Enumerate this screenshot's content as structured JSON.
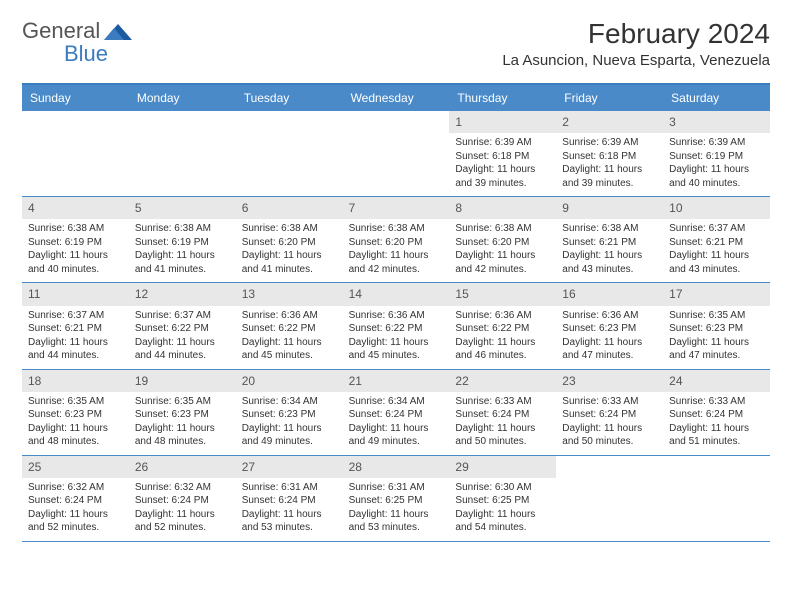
{
  "logo": {
    "part1": "General",
    "part2": "Blue"
  },
  "title": "February 2024",
  "location": "La Asuncion, Nueva Esparta, Venezuela",
  "colors": {
    "header_bg": "#4a8ac9",
    "border": "#4a8ac9",
    "daynum_bg": "#e8e8e8",
    "text": "#333333",
    "logo_blue": "#3b7bbf"
  },
  "weekdays": [
    "Sunday",
    "Monday",
    "Tuesday",
    "Wednesday",
    "Thursday",
    "Friday",
    "Saturday"
  ],
  "weeks": [
    [
      {
        "n": "",
        "sunrise": "",
        "sunset": "",
        "daylight": ""
      },
      {
        "n": "",
        "sunrise": "",
        "sunset": "",
        "daylight": ""
      },
      {
        "n": "",
        "sunrise": "",
        "sunset": "",
        "daylight": ""
      },
      {
        "n": "",
        "sunrise": "",
        "sunset": "",
        "daylight": ""
      },
      {
        "n": "1",
        "sunrise": "Sunrise: 6:39 AM",
        "sunset": "Sunset: 6:18 PM",
        "daylight": "Daylight: 11 hours and 39 minutes."
      },
      {
        "n": "2",
        "sunrise": "Sunrise: 6:39 AM",
        "sunset": "Sunset: 6:18 PM",
        "daylight": "Daylight: 11 hours and 39 minutes."
      },
      {
        "n": "3",
        "sunrise": "Sunrise: 6:39 AM",
        "sunset": "Sunset: 6:19 PM",
        "daylight": "Daylight: 11 hours and 40 minutes."
      }
    ],
    [
      {
        "n": "4",
        "sunrise": "Sunrise: 6:38 AM",
        "sunset": "Sunset: 6:19 PM",
        "daylight": "Daylight: 11 hours and 40 minutes."
      },
      {
        "n": "5",
        "sunrise": "Sunrise: 6:38 AM",
        "sunset": "Sunset: 6:19 PM",
        "daylight": "Daylight: 11 hours and 41 minutes."
      },
      {
        "n": "6",
        "sunrise": "Sunrise: 6:38 AM",
        "sunset": "Sunset: 6:20 PM",
        "daylight": "Daylight: 11 hours and 41 minutes."
      },
      {
        "n": "7",
        "sunrise": "Sunrise: 6:38 AM",
        "sunset": "Sunset: 6:20 PM",
        "daylight": "Daylight: 11 hours and 42 minutes."
      },
      {
        "n": "8",
        "sunrise": "Sunrise: 6:38 AM",
        "sunset": "Sunset: 6:20 PM",
        "daylight": "Daylight: 11 hours and 42 minutes."
      },
      {
        "n": "9",
        "sunrise": "Sunrise: 6:38 AM",
        "sunset": "Sunset: 6:21 PM",
        "daylight": "Daylight: 11 hours and 43 minutes."
      },
      {
        "n": "10",
        "sunrise": "Sunrise: 6:37 AM",
        "sunset": "Sunset: 6:21 PM",
        "daylight": "Daylight: 11 hours and 43 minutes."
      }
    ],
    [
      {
        "n": "11",
        "sunrise": "Sunrise: 6:37 AM",
        "sunset": "Sunset: 6:21 PM",
        "daylight": "Daylight: 11 hours and 44 minutes."
      },
      {
        "n": "12",
        "sunrise": "Sunrise: 6:37 AM",
        "sunset": "Sunset: 6:22 PM",
        "daylight": "Daylight: 11 hours and 44 minutes."
      },
      {
        "n": "13",
        "sunrise": "Sunrise: 6:36 AM",
        "sunset": "Sunset: 6:22 PM",
        "daylight": "Daylight: 11 hours and 45 minutes."
      },
      {
        "n": "14",
        "sunrise": "Sunrise: 6:36 AM",
        "sunset": "Sunset: 6:22 PM",
        "daylight": "Daylight: 11 hours and 45 minutes."
      },
      {
        "n": "15",
        "sunrise": "Sunrise: 6:36 AM",
        "sunset": "Sunset: 6:22 PM",
        "daylight": "Daylight: 11 hours and 46 minutes."
      },
      {
        "n": "16",
        "sunrise": "Sunrise: 6:36 AM",
        "sunset": "Sunset: 6:23 PM",
        "daylight": "Daylight: 11 hours and 47 minutes."
      },
      {
        "n": "17",
        "sunrise": "Sunrise: 6:35 AM",
        "sunset": "Sunset: 6:23 PM",
        "daylight": "Daylight: 11 hours and 47 minutes."
      }
    ],
    [
      {
        "n": "18",
        "sunrise": "Sunrise: 6:35 AM",
        "sunset": "Sunset: 6:23 PM",
        "daylight": "Daylight: 11 hours and 48 minutes."
      },
      {
        "n": "19",
        "sunrise": "Sunrise: 6:35 AM",
        "sunset": "Sunset: 6:23 PM",
        "daylight": "Daylight: 11 hours and 48 minutes."
      },
      {
        "n": "20",
        "sunrise": "Sunrise: 6:34 AM",
        "sunset": "Sunset: 6:23 PM",
        "daylight": "Daylight: 11 hours and 49 minutes."
      },
      {
        "n": "21",
        "sunrise": "Sunrise: 6:34 AM",
        "sunset": "Sunset: 6:24 PM",
        "daylight": "Daylight: 11 hours and 49 minutes."
      },
      {
        "n": "22",
        "sunrise": "Sunrise: 6:33 AM",
        "sunset": "Sunset: 6:24 PM",
        "daylight": "Daylight: 11 hours and 50 minutes."
      },
      {
        "n": "23",
        "sunrise": "Sunrise: 6:33 AM",
        "sunset": "Sunset: 6:24 PM",
        "daylight": "Daylight: 11 hours and 50 minutes."
      },
      {
        "n": "24",
        "sunrise": "Sunrise: 6:33 AM",
        "sunset": "Sunset: 6:24 PM",
        "daylight": "Daylight: 11 hours and 51 minutes."
      }
    ],
    [
      {
        "n": "25",
        "sunrise": "Sunrise: 6:32 AM",
        "sunset": "Sunset: 6:24 PM",
        "daylight": "Daylight: 11 hours and 52 minutes."
      },
      {
        "n": "26",
        "sunrise": "Sunrise: 6:32 AM",
        "sunset": "Sunset: 6:24 PM",
        "daylight": "Daylight: 11 hours and 52 minutes."
      },
      {
        "n": "27",
        "sunrise": "Sunrise: 6:31 AM",
        "sunset": "Sunset: 6:24 PM",
        "daylight": "Daylight: 11 hours and 53 minutes."
      },
      {
        "n": "28",
        "sunrise": "Sunrise: 6:31 AM",
        "sunset": "Sunset: 6:25 PM",
        "daylight": "Daylight: 11 hours and 53 minutes."
      },
      {
        "n": "29",
        "sunrise": "Sunrise: 6:30 AM",
        "sunset": "Sunset: 6:25 PM",
        "daylight": "Daylight: 11 hours and 54 minutes."
      },
      {
        "n": "",
        "sunrise": "",
        "sunset": "",
        "daylight": ""
      },
      {
        "n": "",
        "sunrise": "",
        "sunset": "",
        "daylight": ""
      }
    ]
  ]
}
